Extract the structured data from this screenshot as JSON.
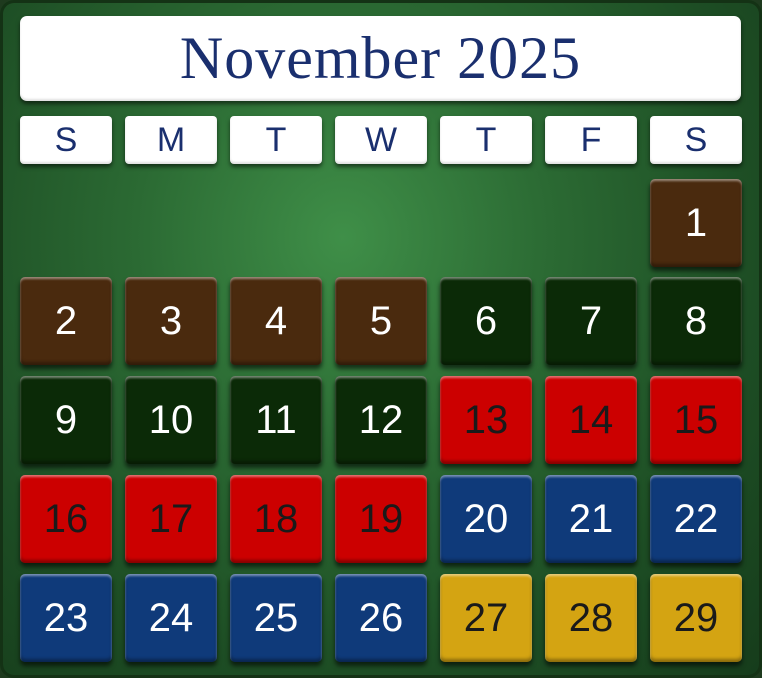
{
  "calendar": {
    "title": "November 2025",
    "weekdays": [
      "S",
      "M",
      "T",
      "W",
      "T",
      "F",
      "S"
    ],
    "first_weekday_index": 6,
    "colors": {
      "brown": "#4a2a0e",
      "dark_green": "#0b2a07",
      "red": "#cc0000",
      "blue": "#0f3a7a",
      "gold": "#d4a412"
    },
    "text_colors": {
      "brown": "#ffffff",
      "dark_green": "#ffffff",
      "red": "#1a1a1a",
      "blue": "#ffffff",
      "gold": "#1a1a1a"
    },
    "days": [
      {
        "day": "1",
        "color": "brown"
      },
      {
        "day": "2",
        "color": "brown"
      },
      {
        "day": "3",
        "color": "brown"
      },
      {
        "day": "4",
        "color": "brown"
      },
      {
        "day": "5",
        "color": "brown"
      },
      {
        "day": "6",
        "color": "dark_green"
      },
      {
        "day": "7",
        "color": "dark_green"
      },
      {
        "day": "8",
        "color": "dark_green"
      },
      {
        "day": "9",
        "color": "dark_green"
      },
      {
        "day": "10",
        "color": "dark_green"
      },
      {
        "day": "11",
        "color": "dark_green"
      },
      {
        "day": "12",
        "color": "dark_green"
      },
      {
        "day": "13",
        "color": "red"
      },
      {
        "day": "14",
        "color": "red"
      },
      {
        "day": "15",
        "color": "red"
      },
      {
        "day": "16",
        "color": "red"
      },
      {
        "day": "17",
        "color": "red"
      },
      {
        "day": "18",
        "color": "red"
      },
      {
        "day": "19",
        "color": "red"
      },
      {
        "day": "20",
        "color": "blue"
      },
      {
        "day": "21",
        "color": "blue"
      },
      {
        "day": "22",
        "color": "blue"
      },
      {
        "day": "23",
        "color": "blue"
      },
      {
        "day": "24",
        "color": "blue"
      },
      {
        "day": "25",
        "color": "blue"
      },
      {
        "day": "26",
        "color": "blue"
      },
      {
        "day": "27",
        "color": "gold"
      },
      {
        "day": "28",
        "color": "gold"
      },
      {
        "day": "29",
        "color": "gold"
      }
    ]
  }
}
